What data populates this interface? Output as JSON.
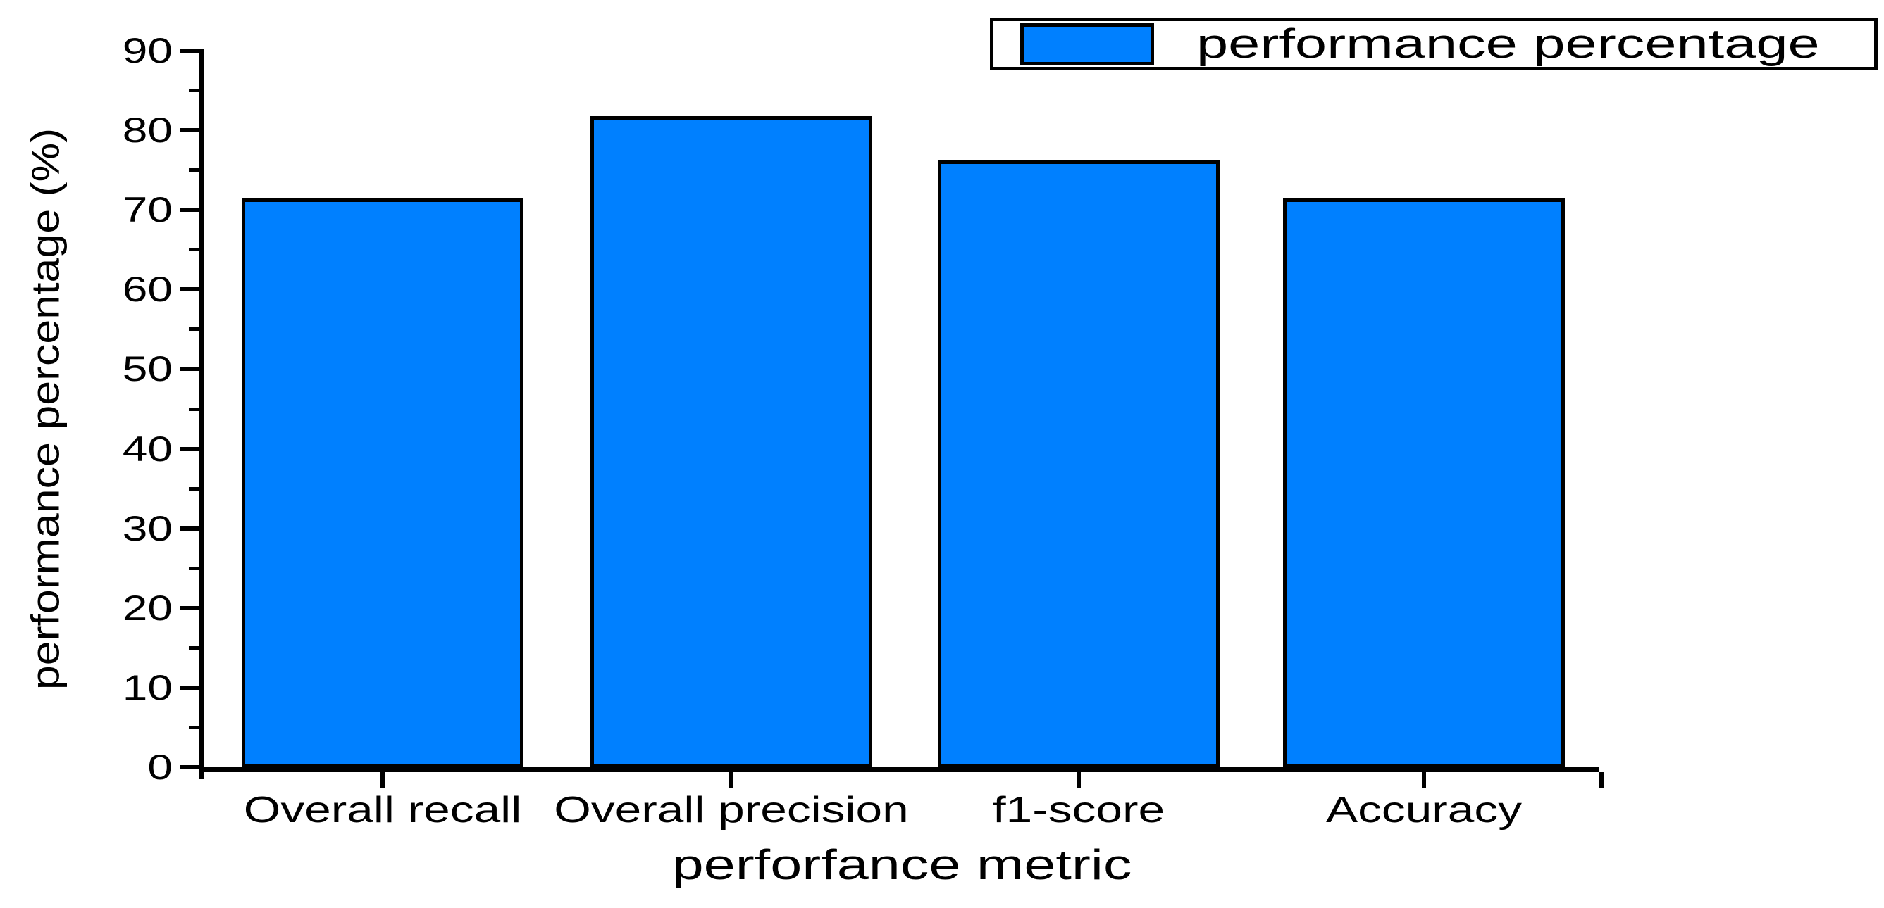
{
  "chart_data": {
    "type": "bar",
    "title": "",
    "categories": [
      "Overall recall",
      "Overall precision",
      "f1-score",
      "Accuracy"
    ],
    "series": [
      {
        "name": "performance percentage",
        "values": [
          71.4,
          81.8,
          76.2,
          71.4
        ]
      }
    ],
    "xlabel": "perforfance metric",
    "ylabel": "performance percentage (%)",
    "ylim": [
      0,
      90
    ],
    "yticks": [
      0,
      10,
      20,
      30,
      40,
      50,
      60,
      70,
      80,
      90
    ],
    "y_minor_step": 5,
    "grid": false,
    "background_color": "#FFFFFF",
    "bar_fill_color": "#0080FF",
    "bar_border_color": "#000000",
    "axis_color": "#000000",
    "legend": {
      "position": "top-right",
      "entries": [
        "performance percentage"
      ],
      "swatch_color": "#0080FF"
    }
  }
}
